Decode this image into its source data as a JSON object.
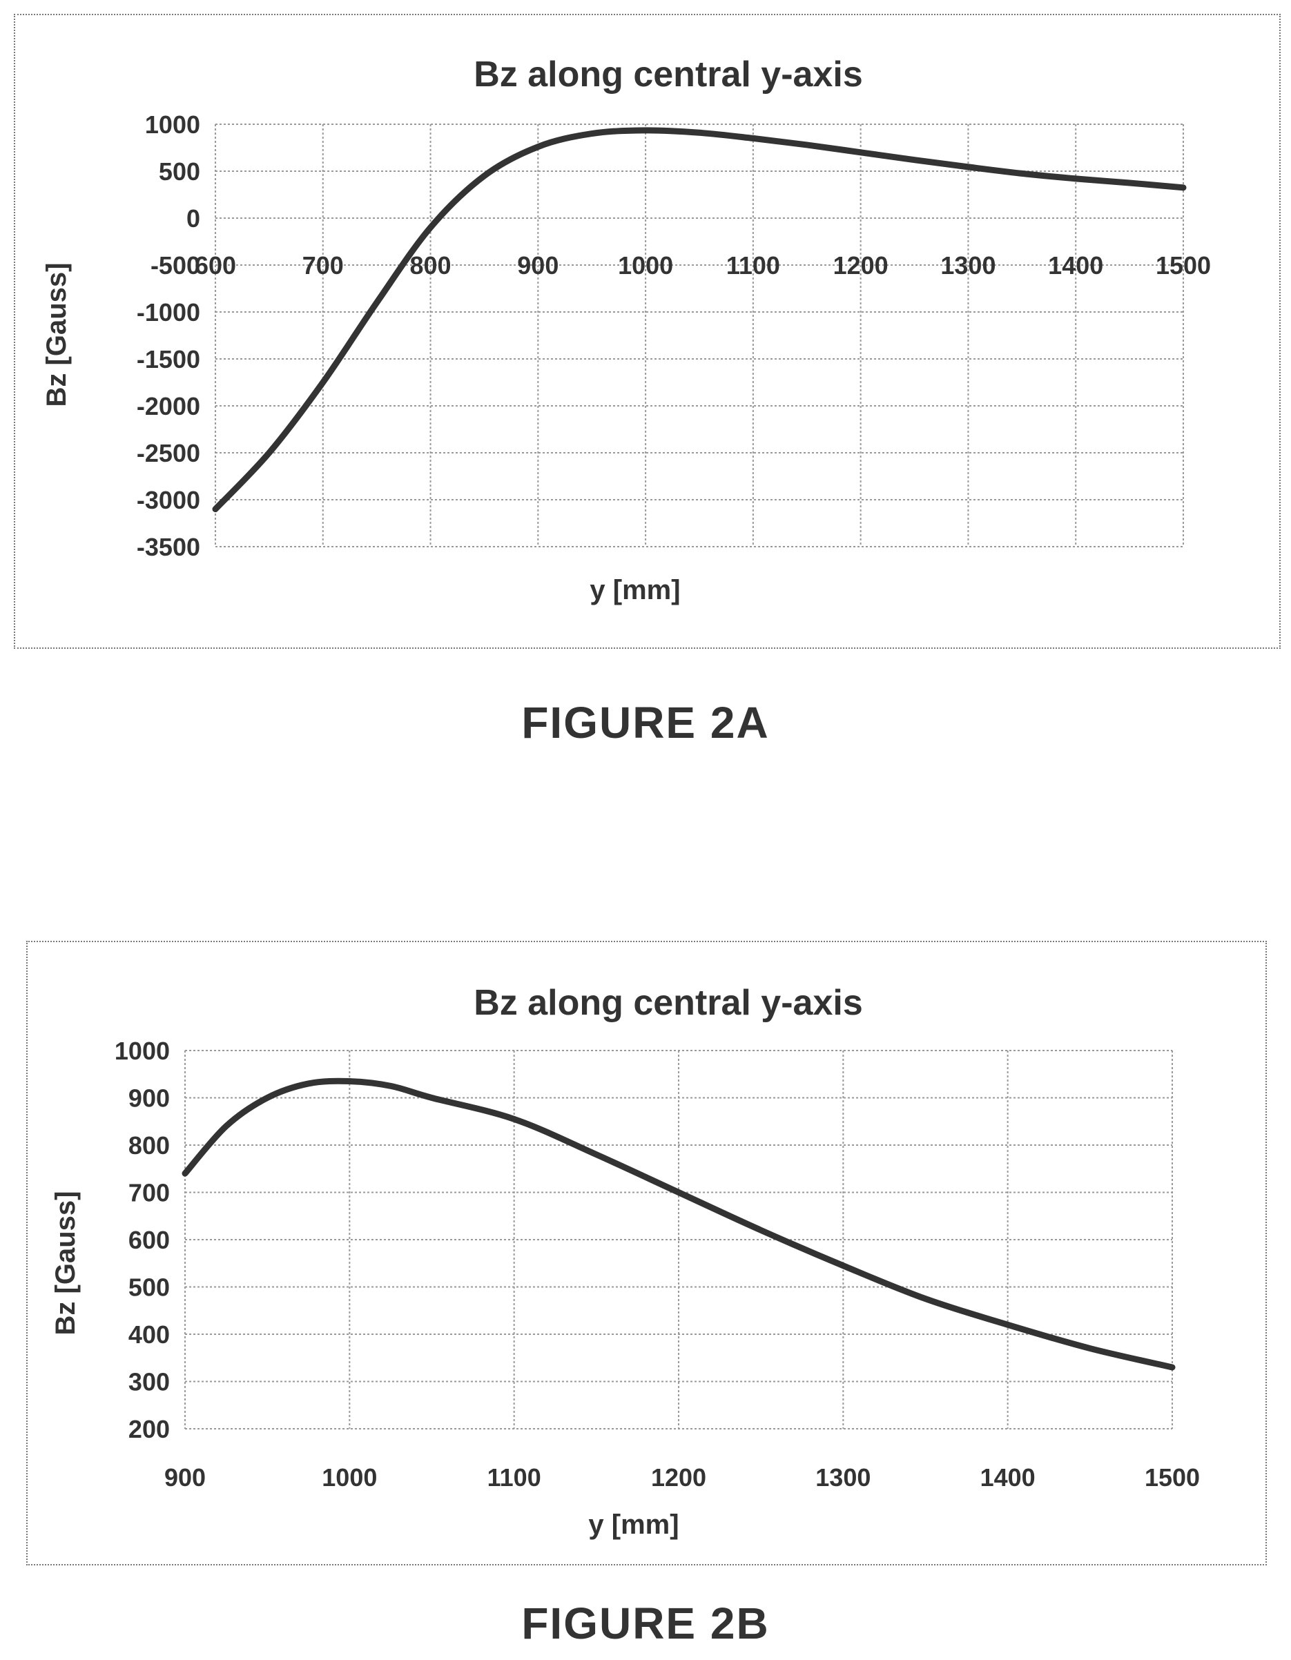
{
  "captions": {
    "a": "FIGURE  2A",
    "b": "FIGURE  2B"
  },
  "chart_data": [
    {
      "type": "line",
      "title": "Bz along central y-axis",
      "xlabel": "y [mm]",
      "ylabel": "Bz [Gauss]",
      "xlim": [
        600,
        1500
      ],
      "ylim": [
        -3500,
        1000
      ],
      "xticks": [
        600,
        700,
        800,
        900,
        1000,
        1100,
        1200,
        1300,
        1400,
        1500
      ],
      "yticks": [
        1000,
        500,
        0,
        -500,
        -1000,
        -1500,
        -2000,
        -2500,
        -3000,
        -3500
      ],
      "xtick_labels": [
        "600",
        "700",
        "800",
        "900",
        "1000",
        "1100",
        "1200",
        "1300",
        "1400",
        "1500"
      ],
      "ytick_labels": [
        "1000",
        "500",
        "0",
        "-500",
        "-1000",
        "-1500",
        "-2000",
        "-2500",
        "-3000",
        "-3500"
      ],
      "x_axis_crosses_at": 0,
      "grid": true,
      "line_color": "#333333",
      "x": [
        600,
        650,
        700,
        750,
        800,
        850,
        900,
        950,
        1000,
        1050,
        1100,
        1150,
        1200,
        1250,
        1300,
        1350,
        1400,
        1450,
        1500
      ],
      "y": [
        -3100,
        -2500,
        -1750,
        -900,
        -100,
        450,
        760,
        900,
        935,
        910,
        850,
        780,
        700,
        620,
        545,
        475,
        420,
        375,
        325
      ]
    },
    {
      "type": "line",
      "title": "Bz along central y-axis",
      "xlabel": "y [mm]",
      "ylabel": "Bz [Gauss]",
      "xlim": [
        900,
        1500
      ],
      "ylim": [
        200,
        1000
      ],
      "xticks": [
        900,
        1000,
        1100,
        1200,
        1300,
        1400,
        1500
      ],
      "yticks": [
        1000,
        900,
        800,
        700,
        600,
        500,
        400,
        300,
        200
      ],
      "xtick_labels": [
        "900",
        "1000",
        "1100",
        "1200",
        "1300",
        "1400",
        "1500"
      ],
      "ytick_labels": [
        "1000",
        "900",
        "800",
        "700",
        "600",
        "500",
        "400",
        "300",
        "200"
      ],
      "grid": true,
      "line_color": "#333333",
      "x": [
        900,
        925,
        950,
        975,
        1000,
        1025,
        1050,
        1100,
        1150,
        1200,
        1250,
        1300,
        1350,
        1400,
        1450,
        1500
      ],
      "y": [
        740,
        840,
        900,
        930,
        935,
        925,
        900,
        855,
        780,
        700,
        620,
        545,
        475,
        420,
        370,
        330
      ]
    }
  ]
}
